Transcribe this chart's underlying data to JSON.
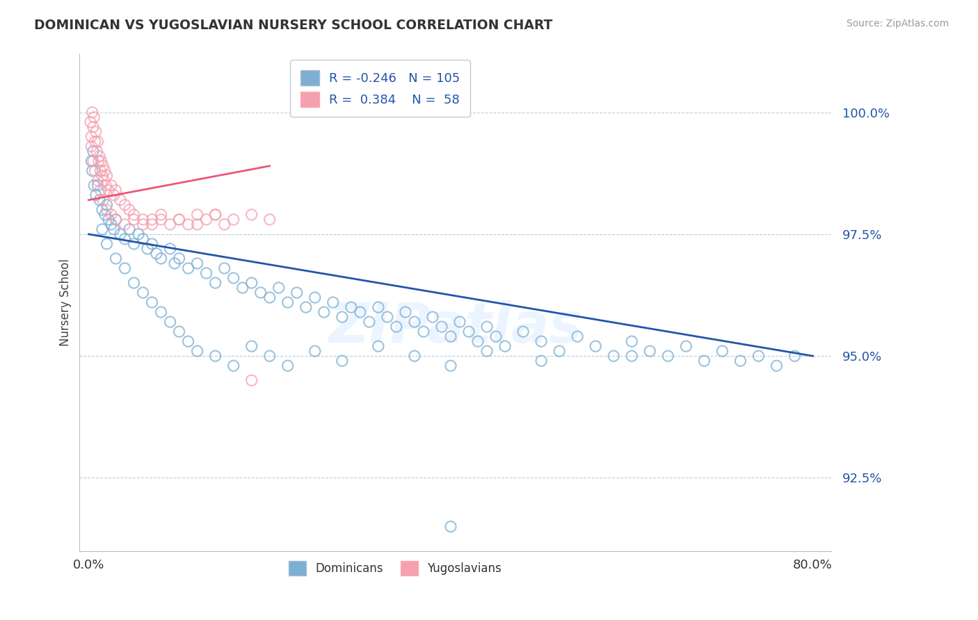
{
  "title": "DOMINICAN VS YUGOSLAVIAN NURSERY SCHOOL CORRELATION CHART",
  "source": "Source: ZipAtlas.com",
  "ylabel": "Nursery School",
  "y_ticks": [
    92.5,
    95.0,
    97.5,
    100.0
  ],
  "y_tick_labels": [
    "92.5%",
    "95.0%",
    "97.5%",
    "100.0%"
  ],
  "ylim": [
    91.0,
    101.2
  ],
  "xlim": [
    -1.0,
    82.0
  ],
  "blue_R": -0.246,
  "blue_N": 105,
  "pink_R": 0.384,
  "pink_N": 58,
  "blue_color": "#7BAFD4",
  "pink_color": "#F4A0B0",
  "blue_line_color": "#2255AA",
  "pink_line_color": "#EE5577",
  "watermark": "ZIPatlas",
  "legend_label_blue": "Dominicans",
  "legend_label_pink": "Yugoslavians",
  "blue_scatter_x": [
    0.3,
    0.4,
    0.5,
    0.6,
    0.8,
    1.0,
    1.2,
    1.5,
    1.8,
    2.0,
    2.2,
    2.5,
    2.8,
    3.0,
    3.5,
    4.0,
    4.5,
    5.0,
    5.5,
    6.0,
    6.5,
    7.0,
    7.5,
    8.0,
    9.0,
    9.5,
    10.0,
    11.0,
    12.0,
    13.0,
    14.0,
    15.0,
    16.0,
    17.0,
    18.0,
    19.0,
    20.0,
    21.0,
    22.0,
    23.0,
    24.0,
    25.0,
    26.0,
    27.0,
    28.0,
    29.0,
    30.0,
    31.0,
    32.0,
    33.0,
    34.0,
    35.0,
    36.0,
    37.0,
    38.0,
    39.0,
    40.0,
    41.0,
    42.0,
    43.0,
    44.0,
    45.0,
    46.0,
    48.0,
    50.0,
    52.0,
    54.0,
    56.0,
    58.0,
    60.0,
    62.0,
    64.0,
    66.0,
    68.0,
    70.0,
    72.0,
    74.0,
    76.0,
    78.0,
    40.0,
    1.5,
    2.0,
    3.0,
    4.0,
    5.0,
    6.0,
    7.0,
    8.0,
    9.0,
    10.0,
    11.0,
    12.0,
    14.0,
    16.0,
    18.0,
    20.0,
    22.0,
    25.0,
    28.0,
    32.0,
    36.0,
    40.0,
    44.0,
    50.0,
    60.0
  ],
  "blue_scatter_y": [
    99.0,
    98.8,
    99.2,
    98.5,
    98.3,
    98.5,
    98.2,
    98.0,
    97.9,
    98.1,
    97.8,
    97.7,
    97.6,
    97.8,
    97.5,
    97.4,
    97.6,
    97.3,
    97.5,
    97.4,
    97.2,
    97.3,
    97.1,
    97.0,
    97.2,
    96.9,
    97.0,
    96.8,
    96.9,
    96.7,
    96.5,
    96.8,
    96.6,
    96.4,
    96.5,
    96.3,
    96.2,
    96.4,
    96.1,
    96.3,
    96.0,
    96.2,
    95.9,
    96.1,
    95.8,
    96.0,
    95.9,
    95.7,
    96.0,
    95.8,
    95.6,
    95.9,
    95.7,
    95.5,
    95.8,
    95.6,
    95.4,
    95.7,
    95.5,
    95.3,
    95.6,
    95.4,
    95.2,
    95.5,
    95.3,
    95.1,
    95.4,
    95.2,
    95.0,
    95.3,
    95.1,
    95.0,
    95.2,
    94.9,
    95.1,
    94.9,
    95.0,
    94.8,
    95.0,
    91.5,
    97.6,
    97.3,
    97.0,
    96.8,
    96.5,
    96.3,
    96.1,
    95.9,
    95.7,
    95.5,
    95.3,
    95.1,
    95.0,
    94.8,
    95.2,
    95.0,
    94.8,
    95.1,
    94.9,
    95.2,
    95.0,
    94.8,
    95.1,
    94.9,
    95.0
  ],
  "pink_scatter_x": [
    0.2,
    0.3,
    0.4,
    0.5,
    0.6,
    0.7,
    0.8,
    0.9,
    1.0,
    1.1,
    1.2,
    1.3,
    1.4,
    1.5,
    1.6,
    1.7,
    1.8,
    1.9,
    2.0,
    2.2,
    2.5,
    2.8,
    3.0,
    3.5,
    4.0,
    4.5,
    5.0,
    6.0,
    7.0,
    8.0,
    9.0,
    10.0,
    11.0,
    12.0,
    13.0,
    14.0,
    15.0,
    16.0,
    18.0,
    20.0,
    0.3,
    0.5,
    0.7,
    1.0,
    1.3,
    1.6,
    2.0,
    2.5,
    3.0,
    4.0,
    5.0,
    6.0,
    7.0,
    8.0,
    10.0,
    12.0,
    14.0,
    18.0
  ],
  "pink_scatter_y": [
    99.8,
    99.5,
    100.0,
    99.7,
    99.9,
    99.4,
    99.6,
    99.2,
    99.4,
    99.0,
    99.1,
    98.8,
    99.0,
    98.7,
    98.9,
    98.6,
    98.8,
    98.5,
    98.7,
    98.4,
    98.5,
    98.3,
    98.4,
    98.2,
    98.1,
    98.0,
    97.9,
    97.8,
    97.7,
    97.8,
    97.7,
    97.8,
    97.7,
    97.9,
    97.8,
    97.9,
    97.7,
    97.8,
    97.9,
    97.8,
    99.3,
    99.0,
    98.8,
    98.6,
    98.4,
    98.2,
    98.0,
    97.9,
    97.8,
    97.7,
    97.8,
    97.7,
    97.8,
    97.9,
    97.8,
    97.7,
    97.9,
    94.5
  ]
}
